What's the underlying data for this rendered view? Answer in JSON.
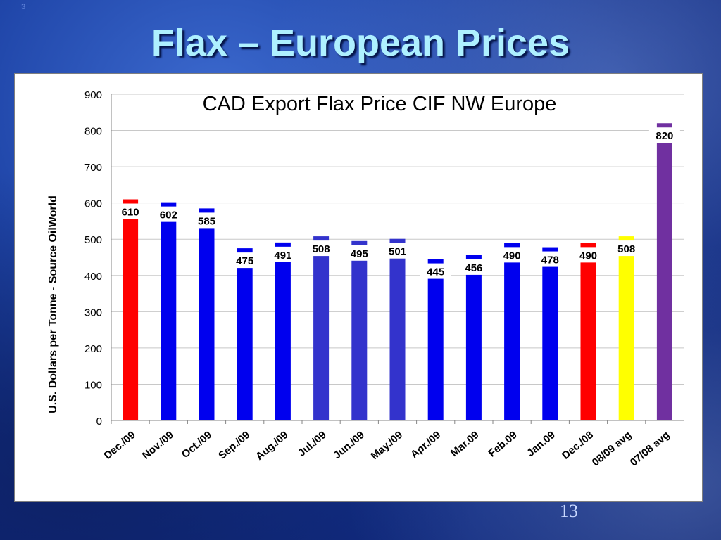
{
  "slide": {
    "corner_mark": "3",
    "title": "Flax – European Prices",
    "page_number": "13"
  },
  "chart_data": {
    "type": "bar",
    "title": "CAD Export Flax Price CIF NW Europe",
    "xlabel": "",
    "ylabel": "U.S. Dollars per Tonne - Source OilWorld",
    "ylim": [
      0,
      900
    ],
    "yticks": [
      0,
      100,
      200,
      300,
      400,
      500,
      600,
      700,
      800,
      900
    ],
    "grid": true,
    "categories": [
      "Dec./09",
      "Nov./09",
      "Oct./09",
      "Sep./09",
      "Aug./09",
      "Jul./09",
      "Jun./09",
      "May./09",
      "Apr./09",
      "Mar.09",
      "Feb.09",
      "Jan.09",
      "Dec./08",
      "08/09 avg",
      "07/08 avg"
    ],
    "values": [
      610,
      602,
      585,
      475,
      491,
      508,
      495,
      501,
      445,
      456,
      490,
      478,
      490,
      508,
      820
    ],
    "colors": [
      "#ff0000",
      "#0000ee",
      "#0000ee",
      "#0000ee",
      "#0000ee",
      "#3333cc",
      "#3333cc",
      "#3333cc",
      "#0000ee",
      "#0000ee",
      "#0000ee",
      "#0000ee",
      "#ff0000",
      "#ffff00",
      "#7030a0"
    ]
  }
}
